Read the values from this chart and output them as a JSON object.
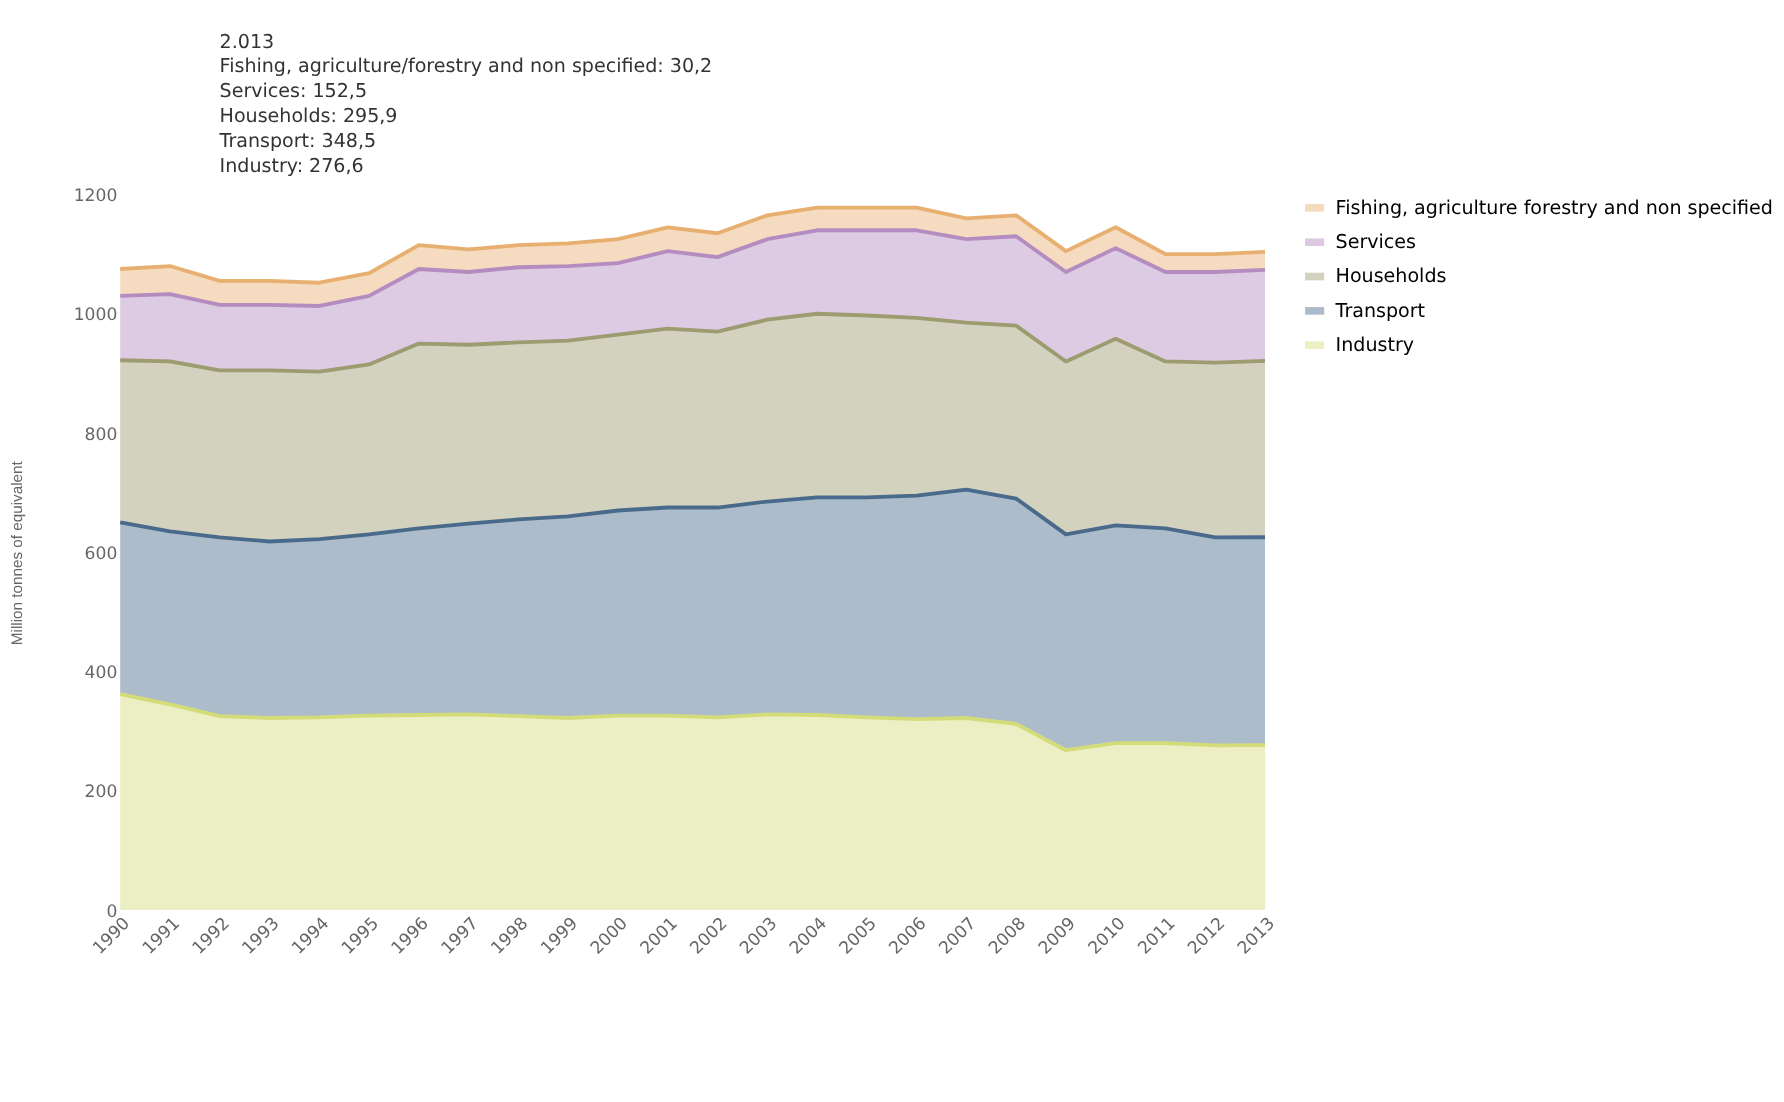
{
  "chart_data": {
    "type": "area",
    "stacked": true,
    "annotations": [
      "2.013",
      "Fishing, agriculture/forestry and non specified: 30,2",
      "Services: 152,5",
      "Households: 295,9",
      "Transport: 348,5",
      "Industry: 276,6"
    ],
    "ylabel": "Million tonnes of equivalent",
    "categories": [
      "1990",
      "1991",
      "1992",
      "1993",
      "1994",
      "1995",
      "1996",
      "1997",
      "1998",
      "1999",
      "2000",
      "2001",
      "2002",
      "2003",
      "2004",
      "2005",
      "2006",
      "2007",
      "2008",
      "2009",
      "2010",
      "2011",
      "2012",
      "2013"
    ],
    "series": [
      {
        "name": "Industry",
        "color": "#d4dc7a",
        "values": [
          362,
          345,
          325,
          322,
          323,
          326,
          327,
          328,
          325,
          322,
          326,
          326,
          323,
          328,
          327,
          323,
          320,
          322,
          312,
          268,
          280,
          280,
          276,
          276.6
        ]
      },
      {
        "name": "Transport",
        "color": "#4a6a8c",
        "values": [
          288,
          290,
          300,
          296,
          299,
          304,
          313,
          320,
          330,
          338,
          344,
          349,
          352,
          357,
          365,
          369,
          375,
          383,
          378,
          362,
          365,
          360,
          349,
          348.5
        ]
      },
      {
        "name": "Households",
        "color": "#9c9c70",
        "values": [
          272,
          285,
          280,
          287,
          281,
          285,
          310,
          300,
          297,
          295,
          295,
          300,
          295,
          305,
          308,
          305,
          298,
          280,
          290,
          290,
          313,
          280,
          293,
          295.9
        ]
      },
      {
        "name": "Services",
        "color": "#b48cc0",
        "values": [
          108,
          113,
          110,
          110,
          110,
          115,
          125,
          122,
          126,
          125,
          120,
          130,
          125,
          135,
          140,
          143,
          147,
          140,
          150,
          150,
          152,
          150,
          152,
          152.5
        ]
      },
      {
        "name": "Fishing, agriculture forestry and non specified",
        "color": "#e8b070",
        "values": [
          45,
          47,
          40,
          40,
          39,
          38,
          40,
          38,
          37,
          38,
          40,
          40,
          40,
          40,
          38,
          38,
          38,
          35,
          35,
          35,
          35,
          30,
          30,
          30.2
        ]
      }
    ],
    "ylim": [
      0,
      1200
    ],
    "yticks": [
      0,
      200,
      400,
      600,
      800,
      1000,
      1200
    ],
    "grid": false,
    "legend": "top right"
  }
}
